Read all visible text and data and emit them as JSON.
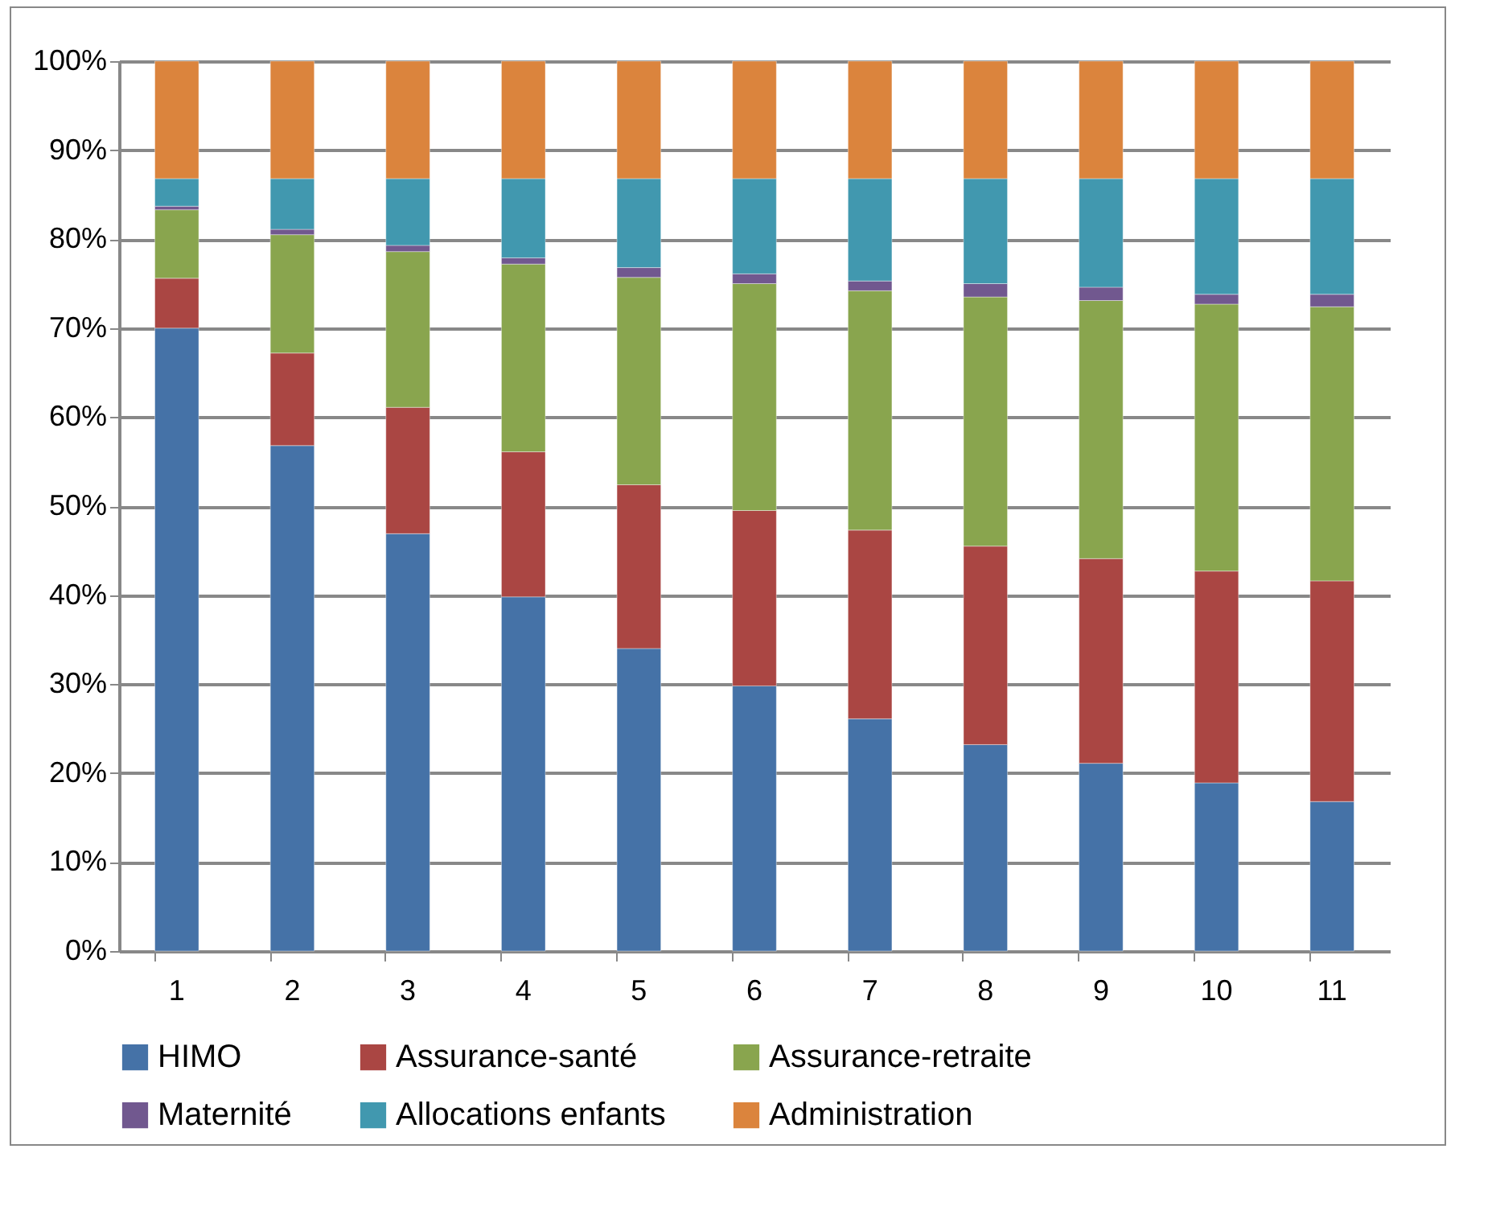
{
  "chart_data": {
    "type": "bar",
    "stacked": true,
    "categories": [
      "1",
      "2",
      "3",
      "4",
      "5",
      "6",
      "7",
      "8",
      "9",
      "10",
      "11"
    ],
    "ylim": [
      0,
      100
    ],
    "yticks": [
      {
        "value": 0,
        "label": "0%"
      },
      {
        "value": 10,
        "label": "10%"
      },
      {
        "value": 20,
        "label": "20%"
      },
      {
        "value": 30,
        "label": "30%"
      },
      {
        "value": 40,
        "label": "40%"
      },
      {
        "value": 50,
        "label": "50%"
      },
      {
        "value": 60,
        "label": "60%"
      },
      {
        "value": 70,
        "label": "70%"
      },
      {
        "value": 80,
        "label": "80%"
      },
      {
        "value": 90,
        "label": "90%"
      },
      {
        "value": 100,
        "label": "100%"
      }
    ],
    "grid": "y",
    "legend": "bottom",
    "series": [
      {
        "name": "HIMO",
        "color": "#4572a7",
        "values": [
          70.0,
          56.8,
          46.9,
          39.8,
          34.0,
          29.8,
          26.1,
          23.2,
          21.1,
          18.9,
          16.8
        ]
      },
      {
        "name": "Assurance-santé",
        "color": "#aa4643",
        "values": [
          5.6,
          10.4,
          14.2,
          16.3,
          18.4,
          19.7,
          21.2,
          22.3,
          23.0,
          23.8,
          24.8
        ]
      },
      {
        "name": "Assurance-retraite",
        "color": "#89a54e",
        "values": [
          7.7,
          13.3,
          17.5,
          21.1,
          23.3,
          25.5,
          26.9,
          28.0,
          29.0,
          30.0,
          30.8
        ]
      },
      {
        "name": "Maternité",
        "color": "#71588f",
        "values": [
          0.4,
          0.6,
          0.7,
          0.7,
          1.1,
          1.1,
          1.1,
          1.5,
          1.5,
          1.1,
          1.4
        ]
      },
      {
        "name": "Allocations enfants",
        "color": "#4198af",
        "values": [
          3.1,
          5.7,
          7.5,
          8.9,
          10.0,
          10.7,
          11.5,
          11.8,
          12.2,
          13.0,
          13.0
        ]
      },
      {
        "name": "Administration",
        "color": "#db843d",
        "values": [
          13.2,
          13.2,
          13.2,
          13.2,
          13.2,
          13.2,
          13.2,
          13.2,
          13.2,
          13.2,
          13.2
        ]
      }
    ]
  }
}
